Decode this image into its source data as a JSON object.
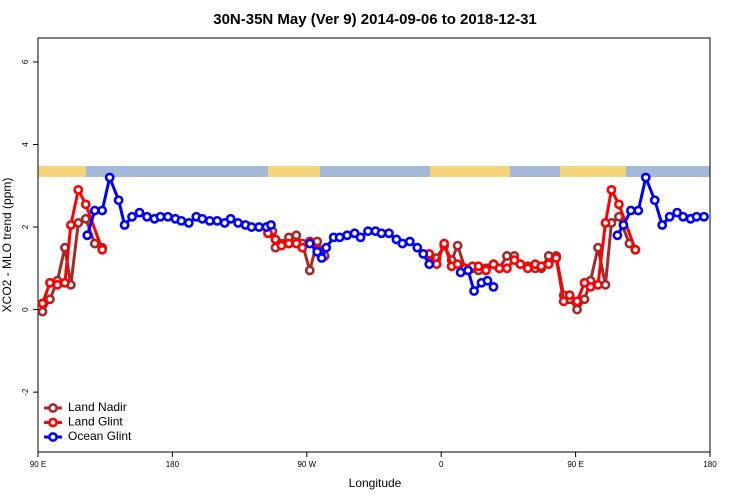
{
  "chart_data": {
    "type": "line",
    "title": "30N-35N May (Ver 9)   2014-09-06 to 2018-12-31",
    "xlabel": "Longitude",
    "ylabel": "XCO2 - MLO trend (ppm)",
    "xlim": [
      90,
      540
    ],
    "ylim": [
      -3.45,
      6.58
    ],
    "xticks": [
      {
        "value": 90,
        "label": "90 E"
      },
      180,
      {
        "value": 270,
        "label": "90 W"
      },
      {
        "value": 360,
        "label": "0"
      },
      {
        "value": 450,
        "label": "90 E"
      },
      {
        "value": 540,
        "label": "180"
      }
    ],
    "yticks": [
      -2,
      0,
      2,
      4,
      6
    ],
    "legend": "bottom-left",
    "series": [
      {
        "name": "Land Nadir",
        "color": "#a52a2a",
        "x": [
          93,
          98,
          103,
          108,
          112,
          117,
          122,
          128,
          133,
          190,
          247,
          249,
          253,
          258,
          263,
          267,
          272,
          277,
          282,
          317,
          352,
          357,
          362,
          367,
          371,
          376,
          381,
          385,
          390,
          395,
          399,
          404,
          409,
          413,
          418,
          423,
          427,
          432,
          437,
          442,
          446,
          451,
          456,
          460,
          465,
          470,
          474,
          479,
          486,
          490
        ],
        "values": [
          -0.05,
          0.25,
          0.7,
          1.5,
          0.6,
          2.1,
          2.2,
          1.6,
          1.5,
          null,
          1.9,
          1.5,
          1.6,
          1.75,
          1.8,
          1.6,
          0.95,
          1.65,
          1.3,
          null,
          1.3,
          1.25,
          1.55,
          1.2,
          1.55,
          1.0,
          1.0,
          0.95,
          1.0,
          1.1,
          1.0,
          1.3,
          1.3,
          1.1,
          1.05,
          1.0,
          1.0,
          1.3,
          1.3,
          0.35,
          0.25,
          0.0,
          0.25,
          0.7,
          1.5,
          0.6,
          2.1,
          2.25,
          1.6,
          1.45
        ]
      },
      {
        "name": "Land Glint",
        "color": "#ff0000",
        "x": [
          93,
          98,
          103,
          108,
          112,
          117,
          122,
          133,
          190,
          244,
          249,
          253,
          258,
          263,
          267,
          272,
          277,
          317,
          352,
          357,
          362,
          367,
          371,
          376,
          381,
          385,
          390,
          395,
          399,
          404,
          409,
          413,
          418,
          423,
          427,
          432,
          437,
          442,
          446,
          451,
          456,
          460,
          465,
          470,
          474,
          479,
          490
        ],
        "values": [
          0.15,
          0.65,
          0.6,
          0.65,
          2.05,
          2.9,
          2.55,
          1.45,
          null,
          1.85,
          1.7,
          1.55,
          1.6,
          1.6,
          1.5,
          1.65,
          1.45,
          null,
          1.35,
          1.1,
          1.6,
          1.05,
          1.1,
          1.0,
          1.05,
          1.05,
          0.95,
          1.1,
          1.0,
          1.0,
          1.2,
          1.1,
          1.0,
          1.1,
          1.05,
          1.1,
          1.25,
          0.2,
          0.35,
          0.2,
          0.65,
          0.55,
          0.6,
          2.1,
          2.9,
          2.55,
          1.45
        ]
      },
      {
        "name": "Ocean Glint",
        "color": "#0000ff",
        "x": [
          123,
          128,
          133,
          138,
          144,
          148,
          153,
          158,
          163,
          168,
          172,
          177,
          182,
          186,
          191,
          196,
          200,
          205,
          210,
          215,
          219,
          224,
          229,
          233,
          238,
          243,
          246,
          259,
          272,
          277,
          280,
          283,
          288,
          292,
          297,
          302,
          306,
          311,
          316,
          320,
          325,
          330,
          334,
          339,
          344,
          348,
          352,
          362,
          373,
          378,
          382,
          387,
          391,
          395,
          430,
          478,
          482,
          487,
          492,
          497,
          503,
          508,
          513,
          518,
          522,
          527,
          531,
          536
        ],
        "values": [
          1.8,
          2.4,
          2.4,
          3.2,
          2.65,
          2.05,
          2.25,
          2.35,
          2.25,
          2.2,
          2.25,
          2.25,
          2.2,
          2.15,
          2.1,
          2.25,
          2.2,
          2.15,
          2.15,
          2.1,
          2.2,
          2.1,
          2.05,
          2.0,
          2.0,
          2.0,
          2.05,
          null,
          1.6,
          1.4,
          1.25,
          1.5,
          1.75,
          1.75,
          1.8,
          1.85,
          1.75,
          1.9,
          1.9,
          1.85,
          1.85,
          1.7,
          1.6,
          1.65,
          1.5,
          1.35,
          1.1,
          null,
          0.9,
          0.95,
          0.45,
          0.65,
          0.7,
          0.55,
          null,
          1.8,
          2.05,
          2.4,
          2.4,
          3.2,
          2.65,
          2.05,
          2.25,
          2.35,
          2.25,
          2.2,
          2.25,
          2.25
        ]
      }
    ]
  }
}
